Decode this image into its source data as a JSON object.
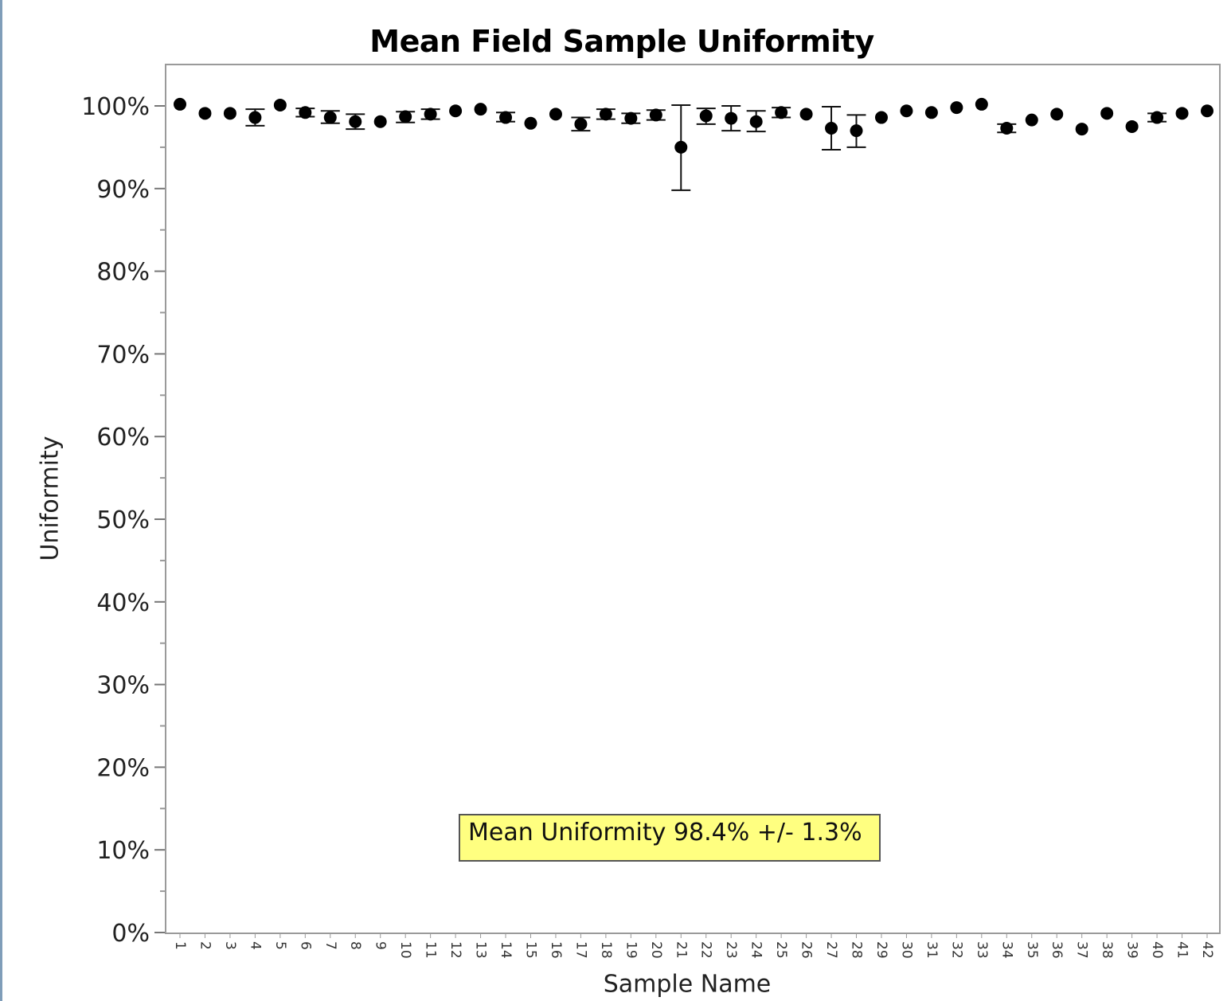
{
  "chart_data": {
    "type": "scatter",
    "title": "Mean Field Sample Uniformity",
    "xlabel": "Sample Name",
    "ylabel": "Uniformity",
    "ylim": [
      0,
      105
    ],
    "yticks": [
      "0%",
      "10%",
      "20%",
      "30%",
      "40%",
      "50%",
      "60%",
      "70%",
      "80%",
      "90%",
      "100%"
    ],
    "categories": [
      "1",
      "2",
      "3",
      "4",
      "5",
      "6",
      "7",
      "8",
      "9",
      "10",
      "11",
      "12",
      "13",
      "14",
      "15",
      "16",
      "17",
      "18",
      "19",
      "20",
      "21",
      "22",
      "23",
      "24",
      "25",
      "26",
      "27",
      "28",
      "29",
      "30",
      "31",
      "32",
      "33",
      "34",
      "35",
      "36",
      "37",
      "38",
      "39",
      "40",
      "41",
      "42"
    ],
    "series": [
      {
        "values": [
          100.2,
          99.1,
          99.1,
          98.6,
          100.1,
          99.2,
          98.6,
          98.1,
          98.1,
          98.7,
          99.0,
          99.4,
          99.6,
          98.6,
          97.9,
          99.0,
          97.8,
          99.0,
          98.5,
          98.9,
          95.0,
          98.8,
          98.5,
          98.1,
          99.2,
          99.0,
          97.3,
          97.0,
          98.6,
          99.4,
          99.2,
          99.8,
          100.2,
          97.3,
          98.3,
          99.0,
          97.2,
          99.1,
          97.5,
          98.6,
          99.1,
          99.4
        ],
        "error_low": [
          100.2,
          99.1,
          99.1,
          97.6,
          100.1,
          98.7,
          97.9,
          97.2,
          98.1,
          98.0,
          98.4,
          99.4,
          99.6,
          98.1,
          97.9,
          99.0,
          97.0,
          98.4,
          97.9,
          98.3,
          89.8,
          97.8,
          97.0,
          96.9,
          98.6,
          99.0,
          94.7,
          95.0,
          98.6,
          99.4,
          99.2,
          99.8,
          100.2,
          96.8,
          98.3,
          99.0,
          97.2,
          99.1,
          97.5,
          98.1,
          99.1,
          99.4
        ],
        "error_high": [
          100.2,
          99.1,
          99.1,
          99.6,
          100.1,
          99.7,
          99.4,
          99.0,
          98.1,
          99.3,
          99.6,
          99.4,
          99.6,
          99.2,
          97.9,
          99.0,
          98.6,
          99.6,
          99.1,
          99.5,
          100.1,
          99.7,
          100.0,
          99.4,
          99.8,
          99.0,
          99.9,
          98.9,
          98.6,
          99.4,
          99.2,
          99.8,
          100.2,
          97.8,
          98.3,
          99.0,
          97.2,
          99.1,
          97.5,
          99.1,
          99.1,
          99.4
        ]
      }
    ],
    "grid": false,
    "annotation": "Mean Uniformity 98.4% +/- 1.3%"
  }
}
